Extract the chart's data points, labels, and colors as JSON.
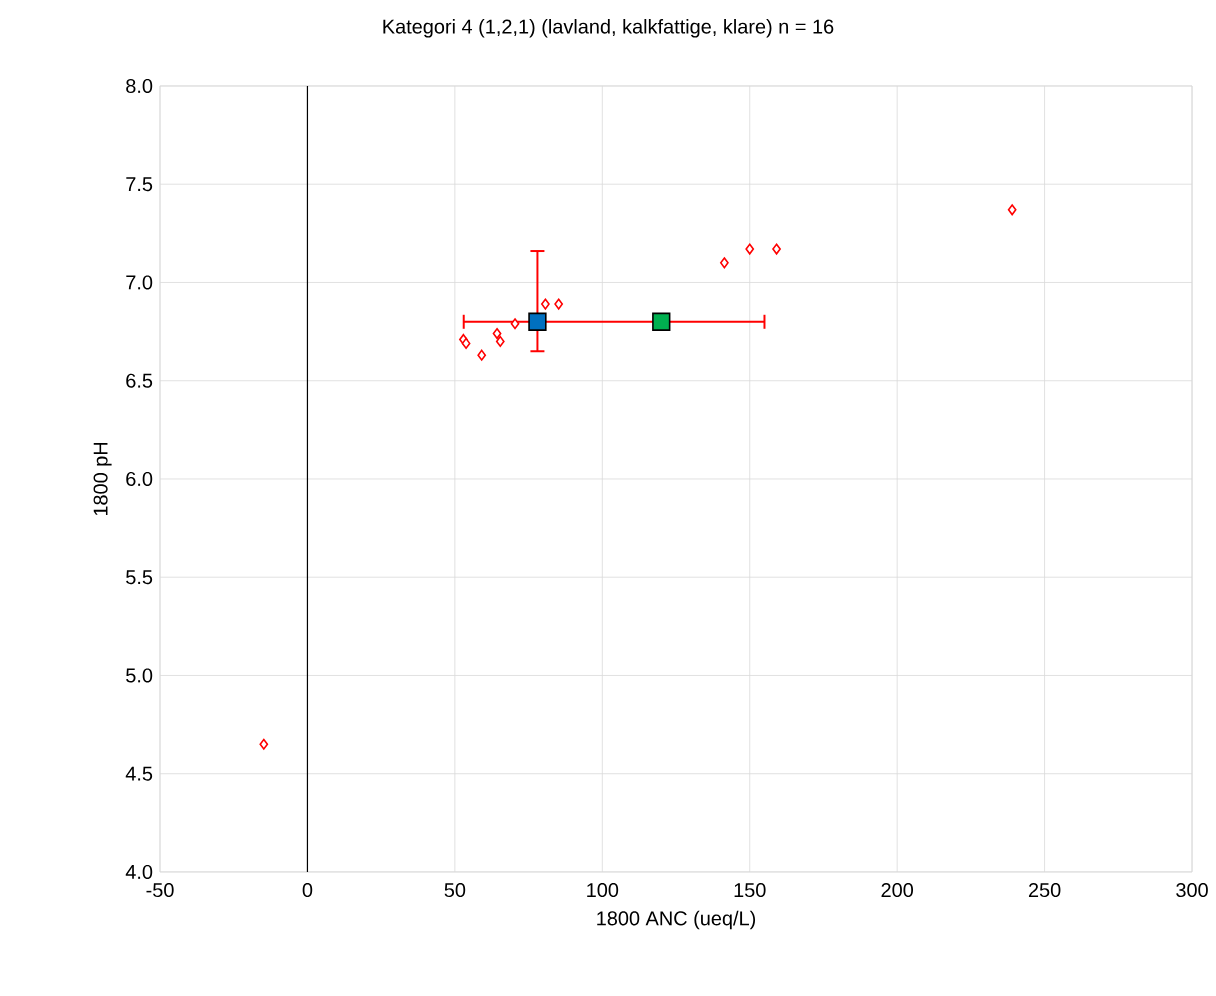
{
  "chart_data": {
    "type": "scatter",
    "title": "Kategori 4  (1,2,1) (lavland, kalkfattige, klare)   n = 16",
    "xlabel": "1800 ANC (ueq/L)",
    "ylabel": "1800 pH",
    "xlim": [
      -50,
      300
    ],
    "ylim": [
      4.0,
      8.0
    ],
    "xticks": [
      -50,
      0,
      50,
      100,
      150,
      200,
      250,
      300
    ],
    "yticks": [
      {
        "value": 4.0,
        "label": "4.0"
      },
      4.5,
      {
        "value": 5.0,
        "label": "5.0"
      },
      5.5,
      {
        "value": 6.0,
        "label": "6.0"
      },
      6.5,
      {
        "value": 7.0,
        "label": "7.0"
      },
      7.5,
      {
        "value": 8.0,
        "label": "8.0"
      }
    ],
    "grid": true,
    "ref_lines": [
      {
        "axis": "x",
        "value": 0,
        "color": "#000000"
      }
    ],
    "series": [
      {
        "color": "#ff0000",
        "marker": "diamond",
        "x": [
          52.9,
          53.8,
          59.1,
          64.3,
          65.4,
          70.4,
          80.7,
          85.2,
          141.4,
          150,
          159.1,
          239,
          -14.8
        ],
        "values": [
          6.71,
          6.69,
          6.63,
          6.74,
          6.7,
          6.79,
          6.89,
          6.89,
          7.1,
          7.17,
          7.17,
          7.37,
          4.65
        ]
      },
      {
        "color": "#0070c0",
        "marker": "square",
        "x": [
          78
        ],
        "values": [
          6.8
        ],
        "errors": [
          [
            6.65,
            7.16
          ]
        ]
      },
      {
        "color": "#00b050",
        "marker": "square",
        "x": [
          120
        ],
        "values": [
          6.8
        ],
        "xerrors": [
          [
            53,
            155
          ]
        ]
      }
    ]
  }
}
